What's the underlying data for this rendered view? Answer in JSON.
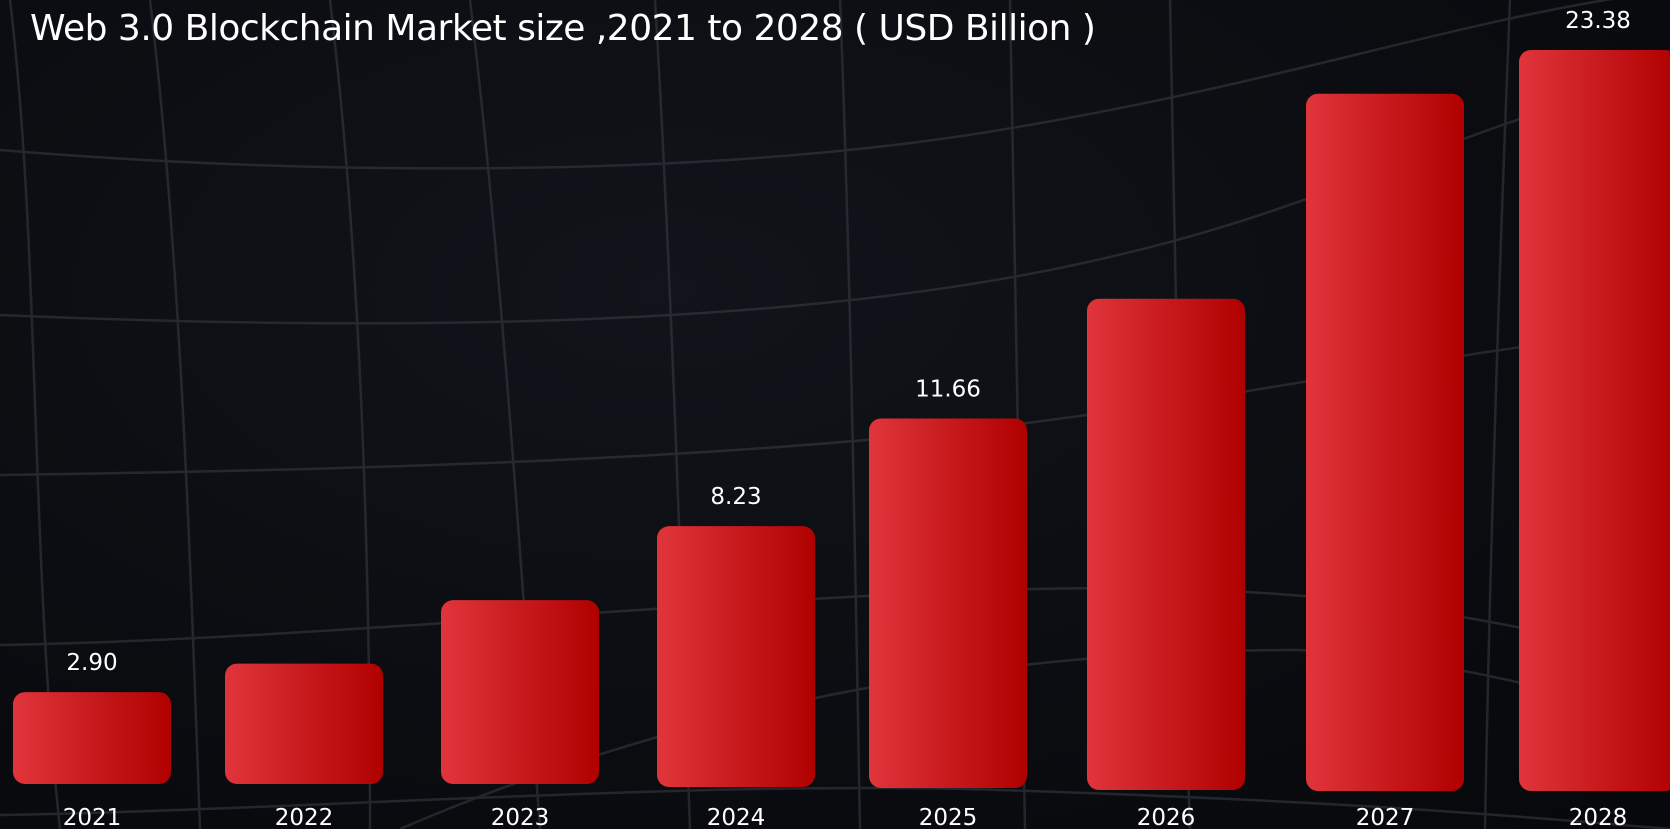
{
  "title": "Web 3.0 Blockchain Market size ,2021 to 2028 ( USD Billion )",
  "colors": {
    "background": "#090b0f",
    "bar_light": "#e0353b",
    "bar_dark": "#b00000",
    "text": "#ffffff",
    "grid_lines": "#3a3d44"
  },
  "chart_data": {
    "type": "bar",
    "title": "Web 3.0 Blockchain Market size ,2021 to 2028 ( USD Billion )",
    "xlabel": "",
    "ylabel": "",
    "categories": [
      "2021",
      "2022",
      "2023",
      "2024",
      "2025",
      "2026",
      "2027",
      "2028"
    ],
    "values": [
      2.9,
      3.8,
      5.8,
      8.23,
      11.66,
      15.5,
      22.0,
      23.38
    ],
    "data_labels": [
      "2.90",
      "",
      "",
      "8.23",
      "11.66",
      "",
      "",
      "23.38"
    ],
    "ylim": [
      0,
      23.38
    ],
    "grid": false,
    "legend": "none"
  }
}
